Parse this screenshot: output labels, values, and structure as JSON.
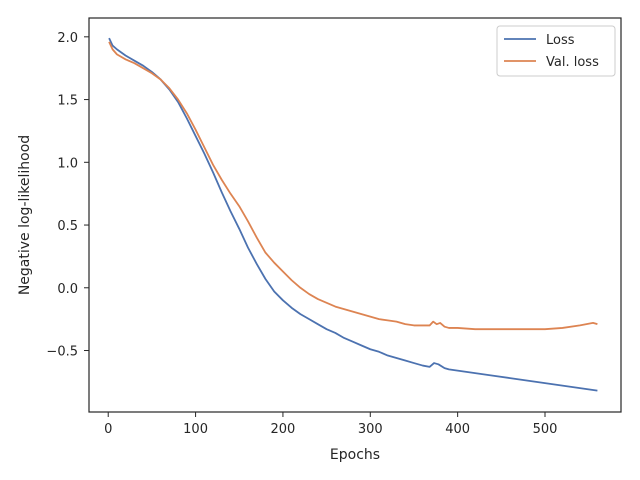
{
  "chart_data": {
    "type": "line",
    "title": "",
    "xlabel": "Epochs",
    "ylabel": "Negative log-likelihood",
    "xlim": [
      -22,
      587
    ],
    "ylim": [
      -0.99,
      2.15
    ],
    "xticks": [
      0,
      100,
      200,
      300,
      400,
      500
    ],
    "yticks": [
      -0.5,
      0.0,
      0.5,
      1.0,
      1.5,
      2.0
    ],
    "xtick_labels": [
      "0",
      "100",
      "200",
      "300",
      "400",
      "500"
    ],
    "ytick_labels": [
      "−0.5",
      "0.0",
      "0.5",
      "1.0",
      "1.5",
      "2.0"
    ],
    "grid": false,
    "legend_position": "upper right",
    "series": [
      {
        "name": "Loss",
        "color": "#4c72b0",
        "points": [
          [
            1,
            1.99
          ],
          [
            5,
            1.93
          ],
          [
            10,
            1.9
          ],
          [
            20,
            1.85
          ],
          [
            30,
            1.81
          ],
          [
            40,
            1.77
          ],
          [
            50,
            1.72
          ],
          [
            60,
            1.66
          ],
          [
            70,
            1.58
          ],
          [
            80,
            1.48
          ],
          [
            90,
            1.35
          ],
          [
            100,
            1.21
          ],
          [
            110,
            1.07
          ],
          [
            120,
            0.92
          ],
          [
            130,
            0.76
          ],
          [
            140,
            0.61
          ],
          [
            150,
            0.47
          ],
          [
            160,
            0.32
          ],
          [
            170,
            0.19
          ],
          [
            180,
            0.07
          ],
          [
            190,
            -0.03
          ],
          [
            200,
            -0.1
          ],
          [
            210,
            -0.16
          ],
          [
            220,
            -0.21
          ],
          [
            230,
            -0.25
          ],
          [
            240,
            -0.29
          ],
          [
            250,
            -0.33
          ],
          [
            260,
            -0.36
          ],
          [
            270,
            -0.4
          ],
          [
            280,
            -0.43
          ],
          [
            290,
            -0.46
          ],
          [
            300,
            -0.49
          ],
          [
            310,
            -0.51
          ],
          [
            320,
            -0.54
          ],
          [
            330,
            -0.56
          ],
          [
            340,
            -0.58
          ],
          [
            350,
            -0.6
          ],
          [
            360,
            -0.62
          ],
          [
            368,
            -0.63
          ],
          [
            373,
            -0.6
          ],
          [
            378,
            -0.61
          ],
          [
            385,
            -0.64
          ],
          [
            390,
            -0.65
          ],
          [
            400,
            -0.66
          ],
          [
            420,
            -0.68
          ],
          [
            440,
            -0.7
          ],
          [
            460,
            -0.72
          ],
          [
            480,
            -0.74
          ],
          [
            500,
            -0.76
          ],
          [
            520,
            -0.78
          ],
          [
            540,
            -0.8
          ],
          [
            560,
            -0.82
          ]
        ]
      },
      {
        "name": "Val. loss",
        "color": "#dd8452",
        "points": [
          [
            1,
            1.96
          ],
          [
            5,
            1.9
          ],
          [
            10,
            1.86
          ],
          [
            20,
            1.82
          ],
          [
            30,
            1.79
          ],
          [
            40,
            1.75
          ],
          [
            50,
            1.71
          ],
          [
            60,
            1.66
          ],
          [
            70,
            1.59
          ],
          [
            80,
            1.5
          ],
          [
            90,
            1.39
          ],
          [
            100,
            1.26
          ],
          [
            110,
            1.12
          ],
          [
            120,
            0.98
          ],
          [
            130,
            0.86
          ],
          [
            140,
            0.75
          ],
          [
            150,
            0.65
          ],
          [
            160,
            0.53
          ],
          [
            170,
            0.4
          ],
          [
            180,
            0.28
          ],
          [
            190,
            0.2
          ],
          [
            200,
            0.13
          ],
          [
            210,
            0.06
          ],
          [
            220,
            0.0
          ],
          [
            230,
            -0.05
          ],
          [
            240,
            -0.09
          ],
          [
            250,
            -0.12
          ],
          [
            260,
            -0.15
          ],
          [
            270,
            -0.17
          ],
          [
            280,
            -0.19
          ],
          [
            290,
            -0.21
          ],
          [
            300,
            -0.23
          ],
          [
            310,
            -0.25
          ],
          [
            320,
            -0.26
          ],
          [
            330,
            -0.27
          ],
          [
            340,
            -0.29
          ],
          [
            350,
            -0.3
          ],
          [
            360,
            -0.3
          ],
          [
            368,
            -0.3
          ],
          [
            372,
            -0.27
          ],
          [
            376,
            -0.29
          ],
          [
            380,
            -0.28
          ],
          [
            385,
            -0.31
          ],
          [
            390,
            -0.32
          ],
          [
            400,
            -0.32
          ],
          [
            420,
            -0.33
          ],
          [
            440,
            -0.33
          ],
          [
            460,
            -0.33
          ],
          [
            480,
            -0.33
          ],
          [
            500,
            -0.33
          ],
          [
            520,
            -0.32
          ],
          [
            540,
            -0.3
          ],
          [
            555,
            -0.28
          ],
          [
            560,
            -0.29
          ]
        ]
      }
    ]
  }
}
